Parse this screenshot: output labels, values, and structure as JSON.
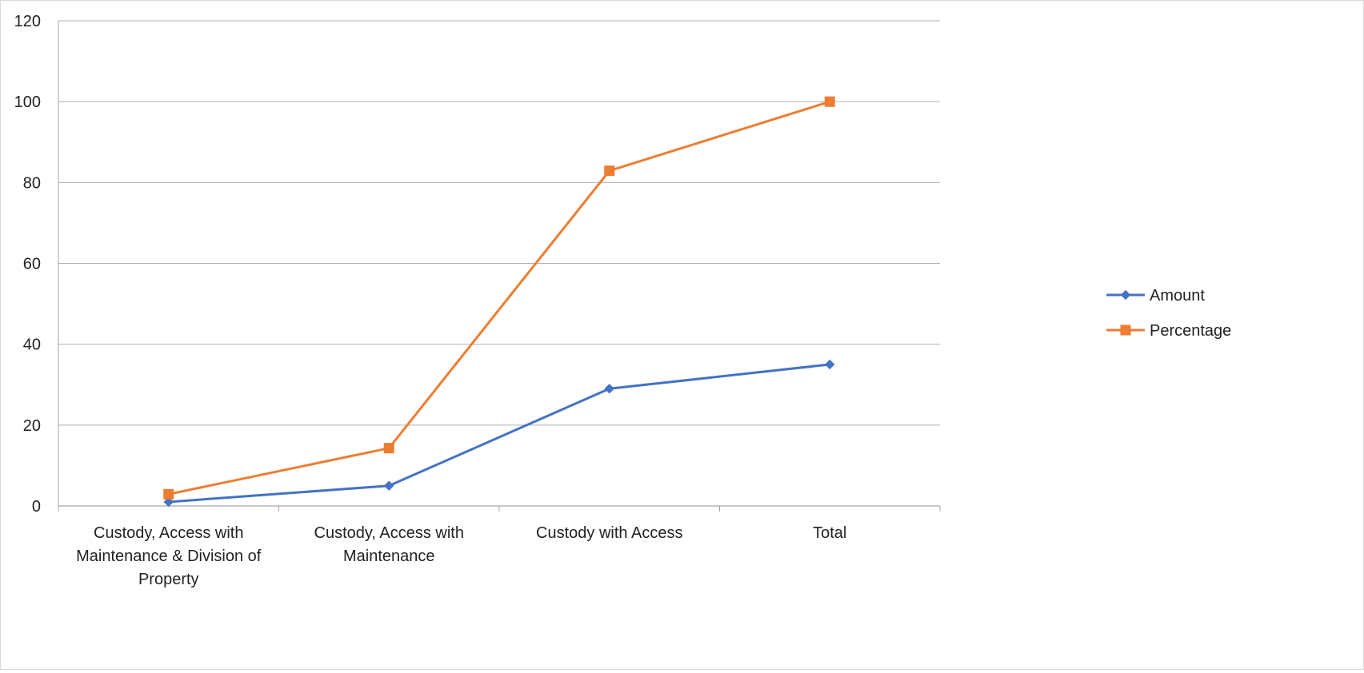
{
  "chart_data": {
    "type": "line",
    "title": "",
    "xlabel": "",
    "ylabel": "",
    "categories": [
      [
        "Custody, Access with",
        "Maintenance & Division of",
        "Property"
      ],
      [
        "Custody, Access with",
        "Maintenance"
      ],
      [
        "Custody with Access"
      ],
      [
        "Total"
      ]
    ],
    "series": [
      {
        "name": "Amount",
        "values": [
          1,
          5,
          29,
          35
        ],
        "color": "#4472C4",
        "marker": "diamond"
      },
      {
        "name": "Percentage",
        "values": [
          2.9,
          14.3,
          82.9,
          100
        ],
        "color": "#ED7D31",
        "marker": "square"
      }
    ],
    "ylim": [
      0,
      120
    ],
    "yticks": [
      "0",
      "20",
      "40",
      "60",
      "80",
      "100",
      "120"
    ],
    "grid": true,
    "legend": "right"
  }
}
